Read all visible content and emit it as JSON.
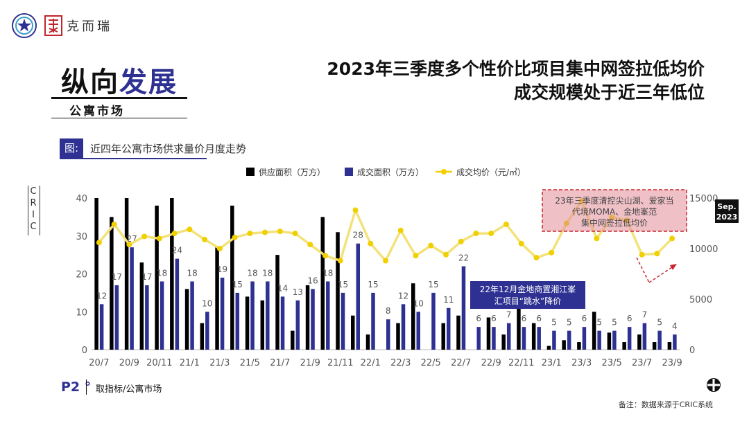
{
  "brand": {
    "name": "克而瑞",
    "seal_icon": "circle-star-seal-icon",
    "stamp_icon": "red-stamp-icon",
    "accent": "#2e3192"
  },
  "section": {
    "title_part1": "纵向",
    "title_part2": "发展",
    "subtitle": "公寓市场"
  },
  "headline": {
    "line1": "2023年三季度多个性价比项目集中网签拉低均价",
    "line2": "成交规模处于近三年低位"
  },
  "figure": {
    "tag": "图:",
    "title": "近四年公寓市场供求量价月度走势",
    "watermark": [
      "C",
      "R",
      "I",
      "C"
    ]
  },
  "footer": {
    "page": "P2",
    "page_mark": "°",
    "source": "取指标/公寓市场",
    "note": "备注：数据来源于CRIC系统"
  },
  "chart_data": {
    "type": "bar",
    "x": [
      "20/7",
      "20/8",
      "20/9",
      "20/10",
      "20/11",
      "20/12",
      "21/1",
      "21/2",
      "21/3",
      "21/4",
      "21/5",
      "21/6",
      "21/7",
      "21/8",
      "21/9",
      "21/10",
      "21/11",
      "21/12",
      "22/1",
      "22/2",
      "22/3",
      "22/4",
      "22/5",
      "22/6",
      "22/7",
      "22/8",
      "22/9",
      "22/10",
      "22/11",
      "22/12",
      "23/1",
      "23/2",
      "23/3",
      "23/4",
      "23/5",
      "23/6",
      "23/7",
      "23/8",
      "23/9"
    ],
    "x_tick_labels": [
      "20/7",
      "20/9",
      "20/11",
      "21/1",
      "21/3",
      "21/5",
      "21/7",
      "21/9",
      "21/11",
      "22/1",
      "22/3",
      "22/5",
      "22/7",
      "22/9",
      "22/11",
      "23/1",
      "23/3",
      "23/5",
      "23/7",
      "23/9"
    ],
    "series": [
      {
        "name": "供应面积（万方）",
        "type": "bar",
        "axis": "left",
        "color": "#000000",
        "values": [
          40,
          35,
          40,
          23,
          38,
          40,
          16,
          7,
          27,
          38,
          14,
          13,
          25,
          5,
          17,
          35,
          31,
          9,
          4,
          0,
          7,
          17.5,
          0,
          7,
          9,
          0,
          8.5,
          4,
          11,
          7,
          1,
          2.5,
          2,
          10,
          4.5,
          2,
          4,
          2,
          2
        ]
      },
      {
        "name": "成交面积（万方）",
        "type": "bar",
        "axis": "left",
        "color": "#2e3192",
        "values": [
          12,
          17,
          27,
          17,
          18,
          24,
          18,
          10,
          19,
          15,
          18,
          18,
          14,
          13,
          16,
          18,
          15,
          28,
          15,
          8,
          12,
          10,
          15,
          11,
          22,
          6,
          6,
          7,
          6,
          6,
          5,
          5,
          6,
          5,
          5,
          6,
          7,
          5,
          4
        ]
      },
      {
        "name": "成交均价（元/㎡）",
        "type": "line",
        "axis": "right",
        "color": "#f0d000",
        "values": [
          10600,
          12400,
          10400,
          11200,
          11000,
          11500,
          11900,
          10900,
          10000,
          11100,
          11500,
          11600,
          11700,
          11500,
          10400,
          9300,
          8800,
          13800,
          10500,
          8800,
          11800,
          9300,
          10300,
          9400,
          10700,
          11500,
          11500,
          12400,
          10500,
          9100,
          9600,
          12500,
          14700,
          11000,
          13100,
          12800,
          9400,
          9500,
          11000
        ]
      }
    ],
    "bar_labels": [
      "12",
      "17",
      "27",
      "17",
      "18",
      "24",
      "18",
      "10",
      "19",
      "15",
      "18",
      "18",
      "14",
      "13",
      "16",
      "18",
      "15",
      "28",
      "15",
      "8",
      "12",
      "10",
      "15",
      "11",
      "22",
      "6",
      "6",
      "7",
      "6",
      "6",
      "5",
      "5",
      "6",
      "5",
      "5",
      "6",
      "7",
      "5",
      "4"
    ],
    "y_left": {
      "min": 0,
      "max": 40,
      "ticks": [
        0,
        10,
        20,
        30,
        40
      ]
    },
    "y_right": {
      "min": 0,
      "max": 15000,
      "ticks": [
        0,
        5000,
        10000,
        15000
      ]
    },
    "legend_position": "top",
    "annotations": [
      {
        "text_lines": [
          "22年12月金地商置湘江峯",
          "汇项目“跳水”降价"
        ],
        "style": "blue-box"
      },
      {
        "text_lines": [
          "23年三季度清控尖山湖、爱家当",
          "代境MOMA、金地峯范",
          "集中网签拉低均价"
        ],
        "style": "red-dashed-box"
      }
    ],
    "badge": {
      "line1": "Sep.",
      "line2": "2023"
    }
  }
}
